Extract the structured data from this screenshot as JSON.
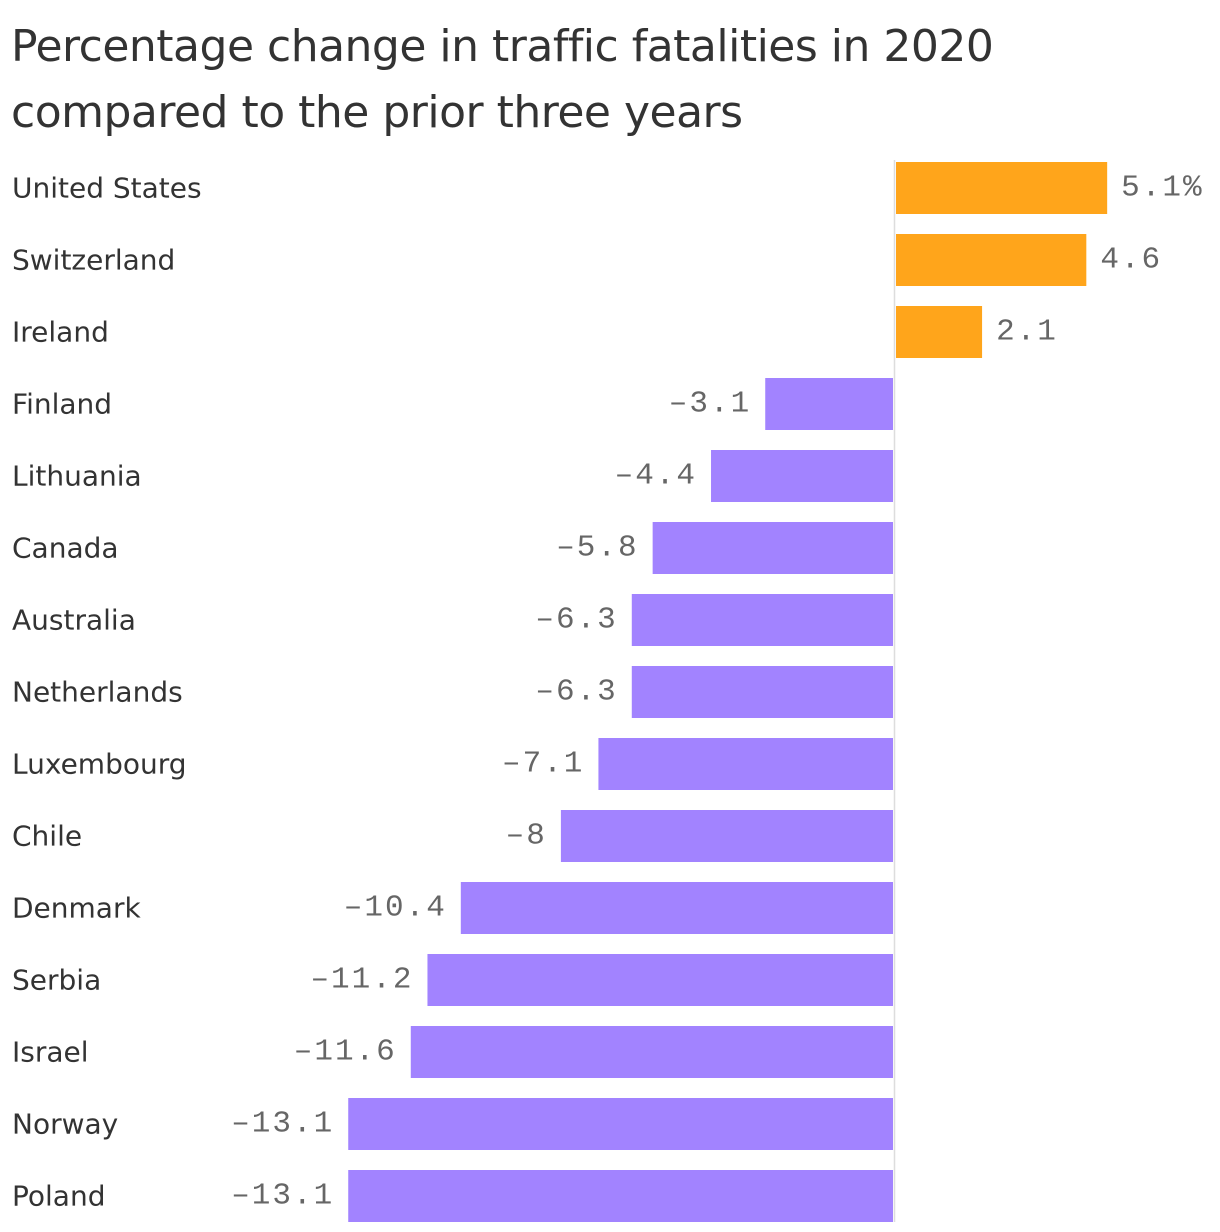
{
  "chart_data": {
    "type": "bar",
    "orientation": "horizontal",
    "title": "Percentage change in traffic fatalities in 2020 compared to the prior three years",
    "categories": [
      "United States",
      "Switzerland",
      "Ireland",
      "Finland",
      "Lithuania",
      "Canada",
      "Australia",
      "Netherlands",
      "Luxembourg",
      "Chile",
      "Denmark",
      "Serbia",
      "Israel",
      "Norway",
      "Poland"
    ],
    "values": [
      5.1,
      4.6,
      2.1,
      -3.1,
      -4.4,
      -5.8,
      -6.3,
      -6.3,
      -7.1,
      -8,
      -10.4,
      -11.2,
      -11.6,
      -13.1,
      -13.1
    ],
    "value_labels": [
      "5.1%",
      "4.6",
      "2.1",
      "–3.1",
      "–4.4",
      "–5.8",
      "–6.3",
      "–6.3",
      "–7.1",
      "–8",
      "–10.4",
      "–11.2",
      "–11.6",
      "–13.1",
      "–13.1"
    ],
    "xlim": [
      -13.1,
      5.1
    ],
    "colors": {
      "positive": "#ffa51b",
      "negative": "#a283ff",
      "zero_line": "#dddddd",
      "category_text": "#333333",
      "value_text": "#666666"
    },
    "grid": false,
    "legend": "none"
  }
}
